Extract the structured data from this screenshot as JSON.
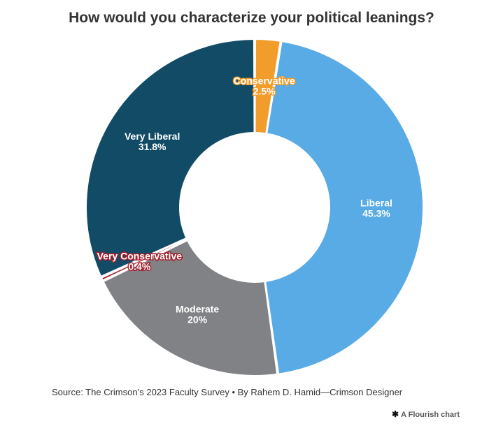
{
  "chart_data": {
    "type": "pie",
    "title": "How would you characterize your political leanings?",
    "categories": [
      "Conservative",
      "Liberal",
      "Moderate",
      "Very Conservative",
      "Very Liberal"
    ],
    "values": [
      2.5,
      45.3,
      20,
      0.4,
      31.8
    ],
    "value_labels": [
      "2.5%",
      "45.3%",
      "20%",
      "0.4%",
      "31.8%"
    ],
    "colors": [
      "#f29d2b",
      "#58abe5",
      "#818285",
      "#a6212f",
      "#124b66"
    ],
    "label_colors": [
      "#ffffff",
      "#ffffff",
      "#ffffff",
      "#ffffff",
      "#ffffff"
    ],
    "label_outline": [
      "#f29d2b",
      "#58abe5",
      "#818285",
      "#a6212f",
      "#124b66"
    ],
    "donut": true,
    "legend": "none"
  },
  "footer": {
    "source": "Source: The Crimson’s 2023 Faculty Survey • By Rahem D. Hamid—Crimson Designer",
    "credit": "A Flourish chart",
    "credit_icon": "asterisk-icon"
  }
}
